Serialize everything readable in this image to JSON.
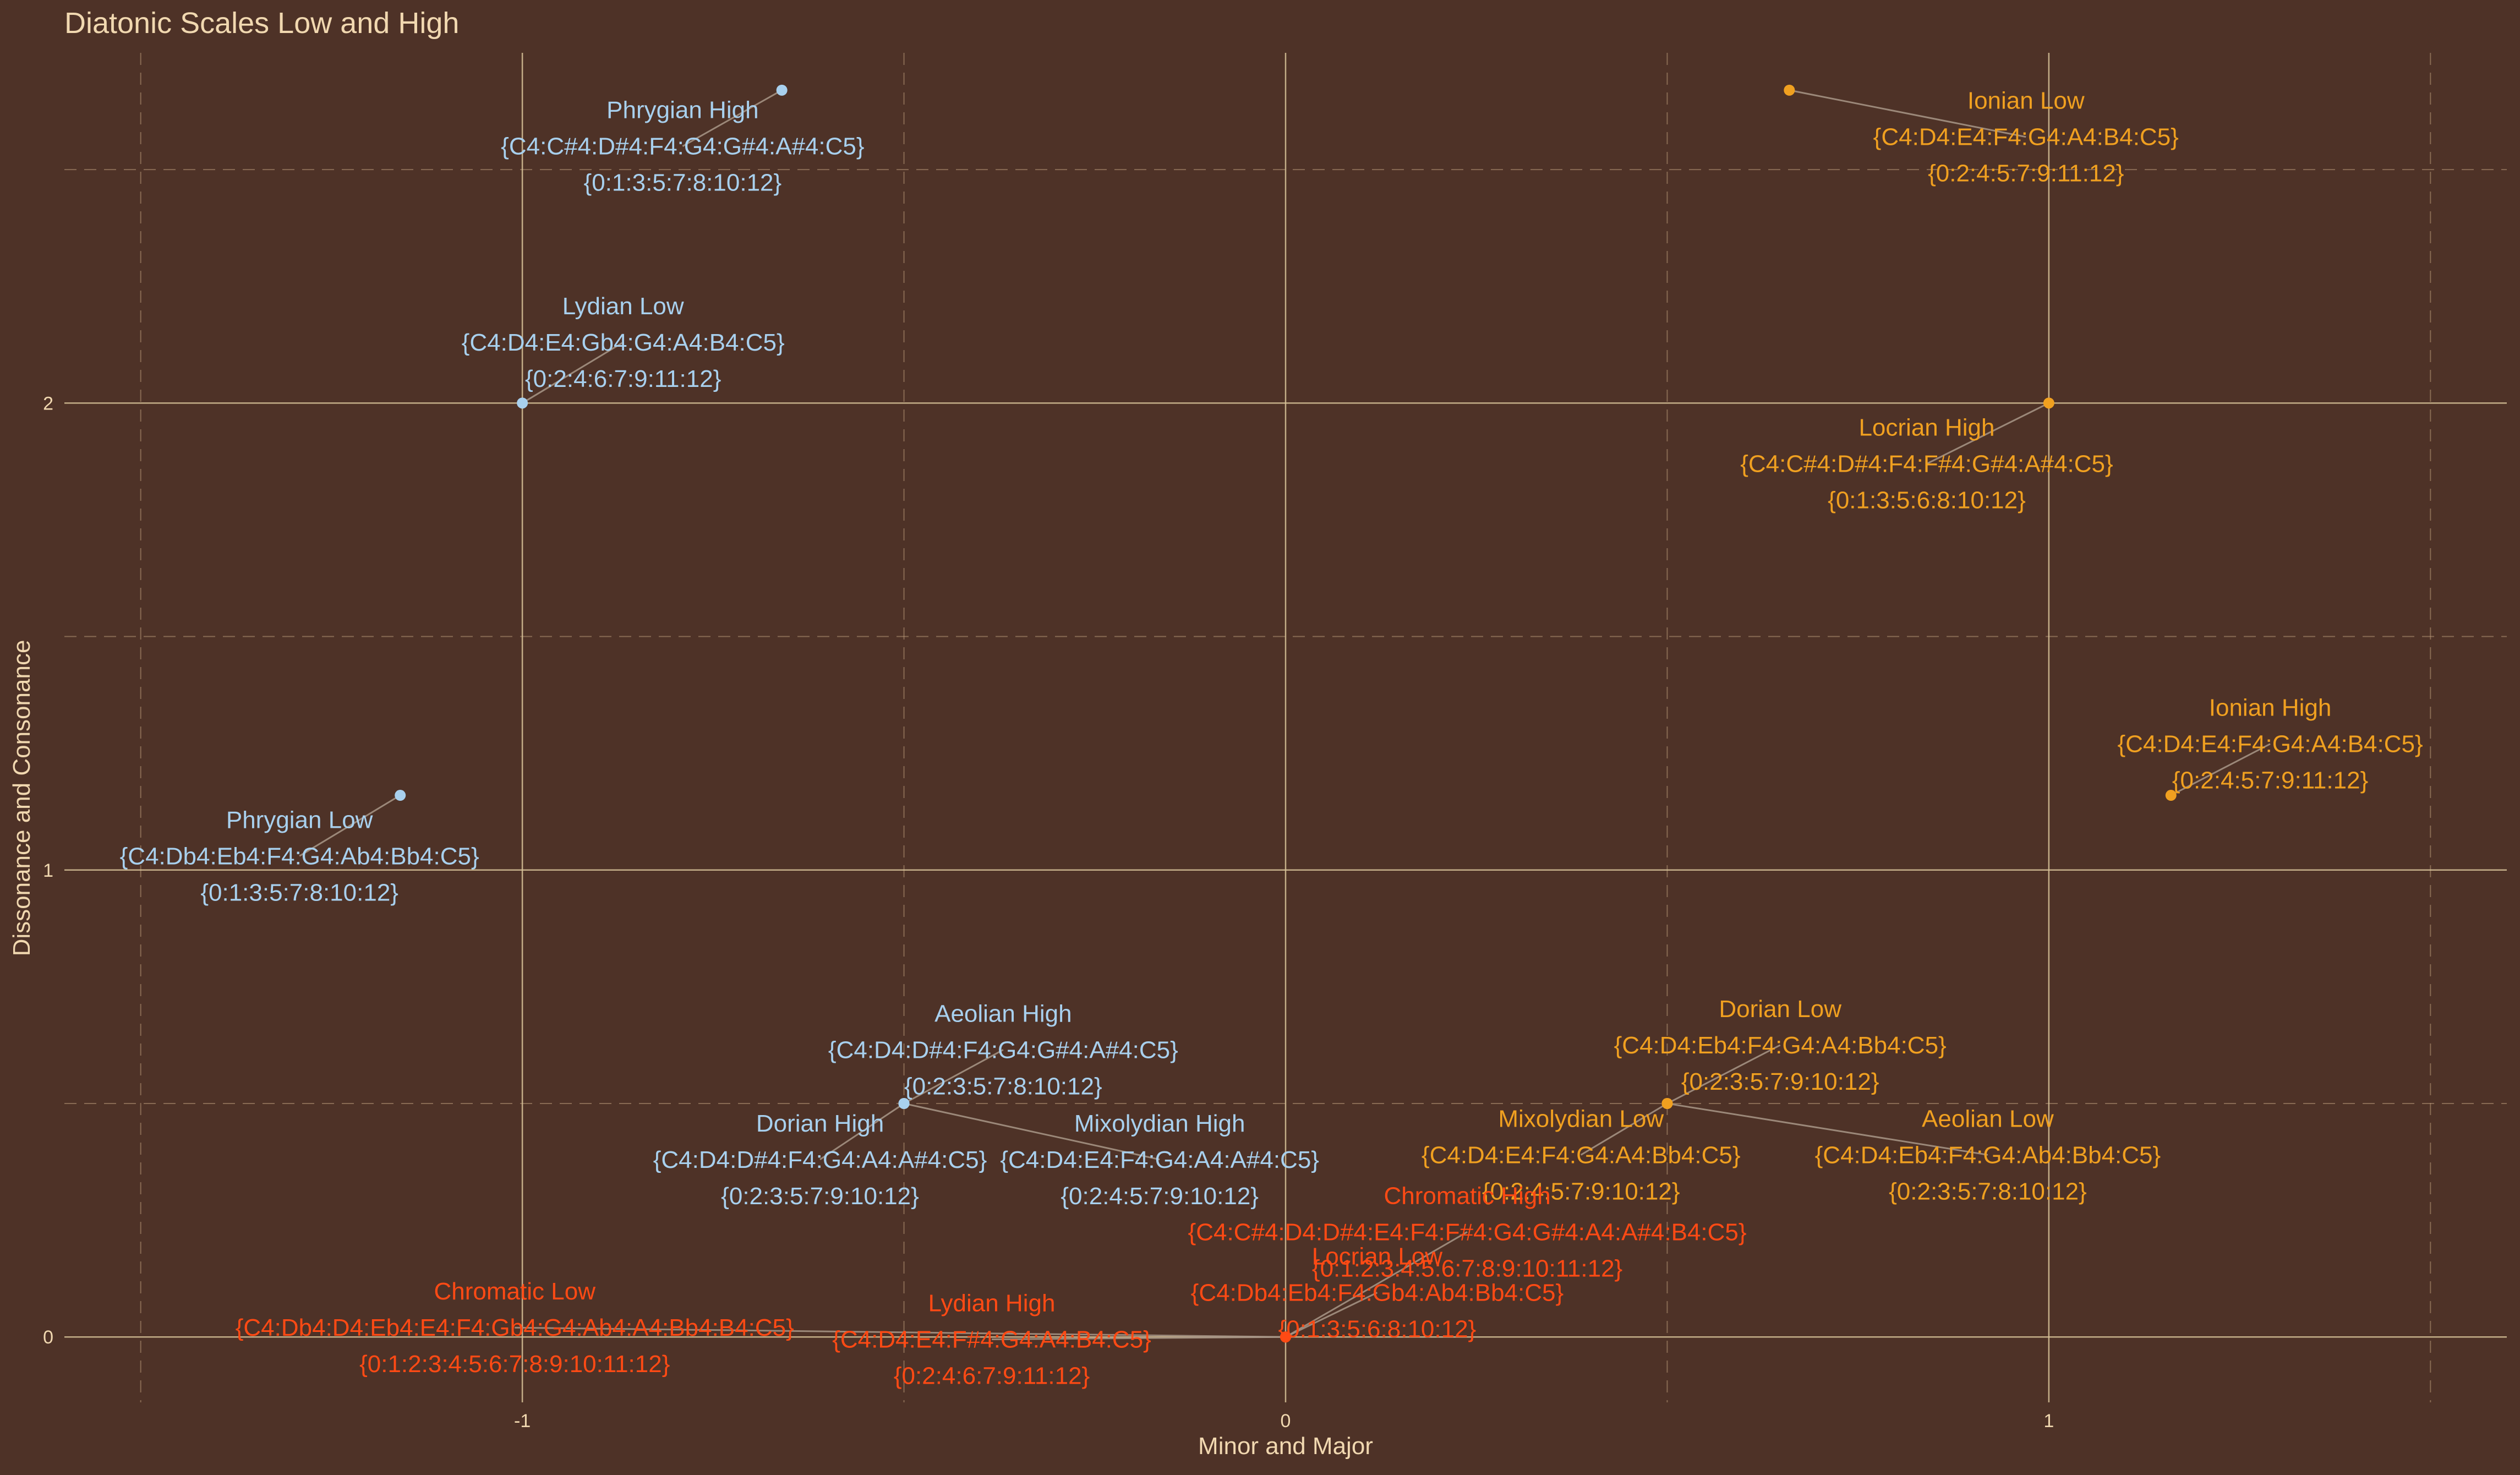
{
  "colors": {
    "background": "#4e3227",
    "text": "#f1d8b0",
    "gridline": "#d9c49a",
    "minor_scale": "#a8d0ee",
    "major_scale": "#f0a020",
    "chromatic_scale": "#ff4a14"
  },
  "chart_data": {
    "type": "scatter",
    "title": "Diatonic Scales Low and High",
    "xlabel": "Minor and Major",
    "ylabel": "Dissonance and Consonance",
    "xlim": [
      -1.6,
      1.6
    ],
    "ylim": [
      -0.14,
      2.75
    ],
    "x_ticks": [
      -1,
      0,
      1
    ],
    "x_tick_labels": [
      "-1",
      "0",
      "1"
    ],
    "y_ticks": [
      0,
      1,
      2
    ],
    "y_tick_labels": [
      "0",
      "1",
      "2"
    ],
    "grid": true,
    "legend": "none",
    "points": [
      {
        "name": "Ionian Low",
        "notes": "{C4:D4:E4:F4:G4:A4:B4:C5}",
        "intervals": "{0:2:4:5:7:9:11:12}",
        "x": 0.66,
        "y": 2.67,
        "group": "major",
        "lx": 0.97,
        "ly": 2.57
      },
      {
        "name": "Locrian High",
        "notes": "{C4:C#4:D#4:F4:F#4:G#4:A#4:C5}",
        "intervals": "{0:1:3:5:6:8:10:12}",
        "x": 1.0,
        "y": 2.0,
        "group": "major",
        "lx": 0.84,
        "ly": 1.87
      },
      {
        "name": "Ionian High",
        "notes": "{C4:D4:E4:F4:G4:A4:B4:C5}",
        "intervals": "{0:2:4:5:7:9:11:12}",
        "x": 1.16,
        "y": 1.16,
        "group": "major",
        "lx": 1.29,
        "ly": 1.27
      },
      {
        "name": "Dorian Low",
        "notes": "{C4:D4:Eb4:F4:G4:A4:Bb4:C5}",
        "intervals": "{0:2:3:5:7:9:10:12}",
        "x": 0.5,
        "y": 0.5,
        "group": "major",
        "lx": 0.648,
        "ly": 0.625
      },
      {
        "name": "Mixolydian Low",
        "notes": "{C4:D4:E4:F4:G4:A4:Bb4:C5}",
        "intervals": "{0:2:4:5:7:9:10:12}",
        "x": 0.5,
        "y": 0.5,
        "group": "major",
        "lx": 0.387,
        "ly": 0.39
      },
      {
        "name": "Aeolian Low",
        "notes": "{C4:D4:Eb4:F4:G4:Ab4:Bb4:C5}",
        "intervals": "{0:2:3:5:7:8:10:12}",
        "x": 0.5,
        "y": 0.5,
        "group": "major",
        "lx": 0.92,
        "ly": 0.39
      },
      {
        "name": "Phrygian High",
        "notes": "{C4:C#4:D#4:F4:G4:G#4:A#4:C5}",
        "intervals": "{0:1:3:5:7:8:10:12}",
        "x": -0.66,
        "y": 2.67,
        "group": "minor",
        "lx": -0.79,
        "ly": 2.55
      },
      {
        "name": "Lydian Low",
        "notes": "{C4:D4:E4:Gb4:G4:A4:B4:C5}",
        "intervals": "{0:2:4:6:7:9:11:12}",
        "x": -1.0,
        "y": 2.0,
        "group": "minor",
        "lx": -0.868,
        "ly": 2.13
      },
      {
        "name": "Phrygian Low",
        "notes": "{C4:Db4:Eb4:F4:G4:Ab4:Bb4:C5}",
        "intervals": "{0:1:3:5:7:8:10:12}",
        "x": -1.16,
        "y": 1.16,
        "group": "minor",
        "lx": -1.292,
        "ly": 1.03
      },
      {
        "name": "Aeolian High",
        "notes": "{C4:D4:D#4:F4:G4:G#4:A#4:C5}",
        "intervals": "{0:2:3:5:7:8:10:12}",
        "x": -0.5,
        "y": 0.5,
        "group": "minor",
        "lx": -0.37,
        "ly": 0.615
      },
      {
        "name": "Dorian High",
        "notes": "{C4:D4:D#4:F4:G4:A4:A#4:C5}",
        "intervals": "{0:2:3:5:7:9:10:12}",
        "x": -0.5,
        "y": 0.5,
        "group": "minor",
        "lx": -0.61,
        "ly": 0.38
      },
      {
        "name": "Mixolydian High",
        "notes": "{C4:D4:E4:F4:G4:A4:A#4:C5}",
        "intervals": "{0:2:4:5:7:9:10:12}",
        "x": -0.5,
        "y": 0.5,
        "group": "minor",
        "lx": -0.165,
        "ly": 0.38
      },
      {
        "name": "Chromatic High",
        "notes": "{C4:C#4:D4:D#4:E4:F4:F#4:G4:G#4:A4:A#4:B4:C5}",
        "intervals": "{0:1:2:3:4:5:6:7:8:9:10:11:12}",
        "x": 0.0,
        "y": 0.0,
        "group": "chromatic",
        "lx": 0.238,
        "ly": 0.225
      },
      {
        "name": "Locrian Low",
        "notes": "{C4:Db4:Eb4:F4:Gb4:Ab4:Bb4:C5}",
        "intervals": "{0:1:3:5:6:8:10:12}",
        "x": 0.0,
        "y": 0.0,
        "group": "chromatic",
        "lx": 0.12,
        "ly": 0.095
      },
      {
        "name": "Chromatic Low",
        "notes": "{C4:Db4:D4:Eb4:E4:F4:Gb4:G4:Ab4:A4:Bb4:B4:C5}",
        "intervals": "{0:1:2:3:4:5:6:7:8:9:10:11:12}",
        "x": 0.0,
        "y": 0.0,
        "group": "chromatic",
        "lx": -1.01,
        "ly": 0.02
      },
      {
        "name": "Lydian High",
        "notes": "{C4:D4:E4:F#4:G4:A4:B4:C5}",
        "intervals": "{0:2:4:6:7:9:11:12}",
        "x": 0.0,
        "y": 0.0,
        "group": "chromatic",
        "lx": -0.385,
        "ly": -0.005
      }
    ]
  }
}
